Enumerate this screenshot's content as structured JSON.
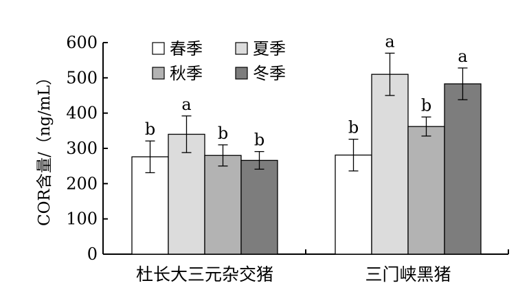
{
  "chart_data": {
    "type": "bar",
    "ylabel": "COR含量/（ng/mL）",
    "xlabel": "",
    "ylim": [
      0,
      600
    ],
    "yticks": [
      0,
      100,
      200,
      300,
      400,
      500,
      600
    ],
    "categories": [
      "杜长大三元杂交猪",
      "三门峡黑猪"
    ],
    "series": [
      {
        "name": "春季",
        "color": "#ffffff",
        "values": [
          276,
          281
        ],
        "errors": [
          45,
          45
        ],
        "letters": [
          "b",
          "b"
        ]
      },
      {
        "name": "夏季",
        "color": "#dcdcdc",
        "values": [
          340,
          510
        ],
        "errors": [
          52,
          60
        ],
        "letters": [
          "a",
          "a"
        ]
      },
      {
        "name": "秋季",
        "color": "#b3b3b3",
        "values": [
          280,
          362
        ],
        "errors": [
          30,
          27
        ],
        "letters": [
          "b",
          "b"
        ]
      },
      {
        "name": "冬季",
        "color": "#7d7d7d",
        "values": [
          266,
          483
        ],
        "errors": [
          25,
          45
        ],
        "letters": [
          "b",
          "a"
        ]
      }
    ],
    "legend": {
      "position": "top-left",
      "columns": 2
    },
    "grid": false
  }
}
